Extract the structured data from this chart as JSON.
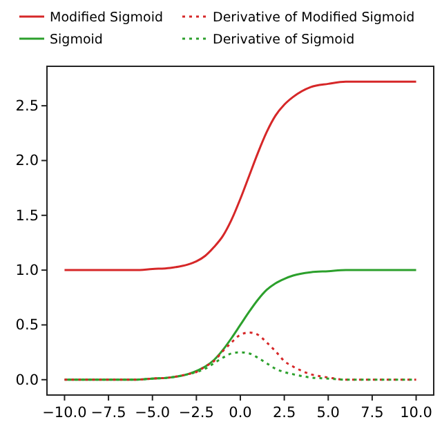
{
  "chart_data": {
    "type": "line",
    "x": [
      -10,
      -8,
      -6,
      -5,
      -4,
      -3,
      -2.5,
      -2,
      -1.5,
      -1,
      -0.5,
      0,
      0.5,
      1,
      1.5,
      2,
      2.5,
      3,
      4,
      5,
      6,
      8,
      10
    ],
    "series": [
      {
        "name": "Modified Sigmoid",
        "color": "#d62728",
        "line_style": "solid",
        "values": [
          1.0,
          1.0,
          1.0,
          1.01,
          1.02,
          1.05,
          1.08,
          1.13,
          1.21,
          1.31,
          1.46,
          1.65,
          1.86,
          2.07,
          2.26,
          2.41,
          2.51,
          2.58,
          2.67,
          2.7,
          2.72,
          2.72,
          2.72
        ]
      },
      {
        "name": "Sigmoid",
        "color": "#2ca02c",
        "line_style": "solid",
        "values": [
          0.0,
          0.0,
          0.0,
          0.01,
          0.02,
          0.05,
          0.08,
          0.12,
          0.18,
          0.27,
          0.38,
          0.5,
          0.62,
          0.73,
          0.82,
          0.88,
          0.92,
          0.95,
          0.98,
          0.99,
          1.0,
          1.0,
          1.0
        ]
      },
      {
        "name": "Derivative of Modified Sigmoid",
        "color": "#d62728",
        "line_style": "dotted",
        "values": [
          0,
          0,
          0,
          0.01,
          0.02,
          0.05,
          0.07,
          0.12,
          0.17,
          0.26,
          0.34,
          0.41,
          0.43,
          0.41,
          0.34,
          0.26,
          0.17,
          0.12,
          0.05,
          0.02,
          0,
          0,
          0
        ]
      },
      {
        "name": "Derivative of Sigmoid",
        "color": "#2ca02c",
        "line_style": "dotted",
        "values": [
          0,
          0,
          0,
          0.01,
          0.02,
          0.05,
          0.07,
          0.1,
          0.15,
          0.2,
          0.24,
          0.25,
          0.24,
          0.2,
          0.15,
          0.1,
          0.07,
          0.05,
          0.02,
          0.01,
          0,
          0,
          0
        ]
      }
    ],
    "xlim": [
      -11,
      11
    ],
    "xticks": [
      {
        "value": -10,
        "label": "−10.0"
      },
      {
        "value": -7.5,
        "label": "−7.5"
      },
      {
        "value": -5,
        "label": "−5.0"
      },
      {
        "value": -2.5,
        "label": "−2.5"
      },
      {
        "value": 0,
        "label": "0.0"
      },
      {
        "value": 2.5,
        "label": "2.5"
      },
      {
        "value": 5,
        "label": "5.0"
      },
      {
        "value": 7.5,
        "label": "7.5"
      },
      {
        "value": 10,
        "label": "10.0"
      }
    ],
    "ylim": [
      -0.14,
      2.86
    ],
    "yticks": [
      {
        "value": 0,
        "label": "0.0"
      },
      {
        "value": 0.5,
        "label": "0.5"
      },
      {
        "value": 1,
        "label": "1.0"
      },
      {
        "value": 1.5,
        "label": "1.5"
      },
      {
        "value": 2,
        "label": "2.0"
      },
      {
        "value": 2.5,
        "label": "2.5"
      }
    ],
    "legend": "top",
    "grid": false
  }
}
